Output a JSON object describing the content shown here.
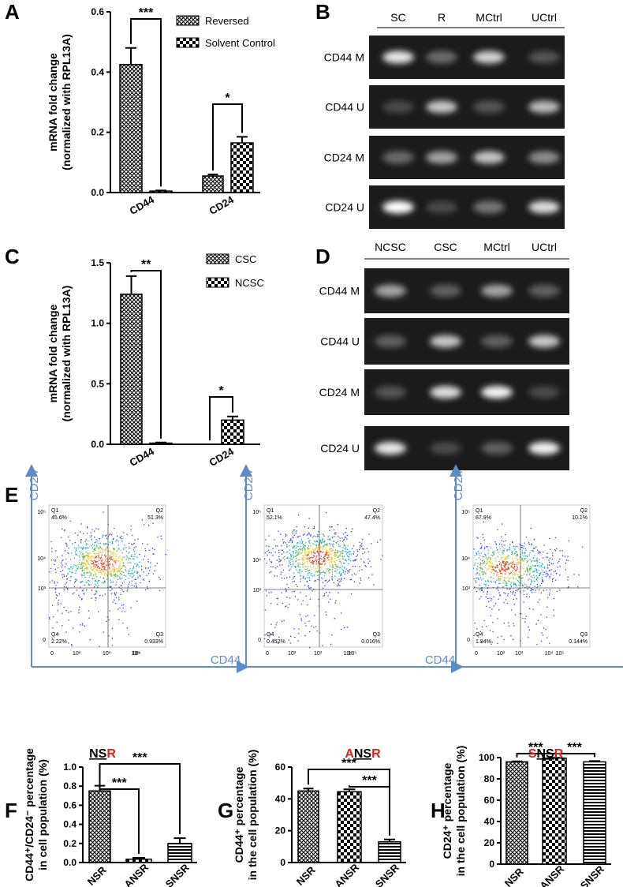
{
  "chart_data": [
    {
      "type": "bar",
      "label": "A",
      "ylabel": "mRNA fold change",
      "ylabel2": "(normalized with RPL13A)",
      "categories": [
        "CD44",
        "CD24"
      ],
      "series": [
        {
          "name": "Reversed",
          "color": "#000000",
          "values": [
            0.425,
            0.055
          ],
          "errors": [
            0.055,
            0.005
          ]
        },
        {
          "name": "Solvent Control",
          "color": "#000000",
          "values": [
            0.005,
            0.165
          ],
          "errors": [
            0.002,
            0.02
          ]
        }
      ],
      "ylim": [
        0,
        0.6
      ],
      "yticks": [
        {
          "value": 0,
          "label": "0.0"
        },
        0.2,
        0.4,
        0.6
      ],
      "annotations": [
        "***",
        "*"
      ]
    },
    {
      "type": "bar",
      "label": "C",
      "ylabel": "mRNA fold change",
      "ylabel2": "(normalized with RPL13A)",
      "categories": [
        "CD44",
        "CD24"
      ],
      "series": [
        {
          "name": "CSC",
          "color": "#000000",
          "values": [
            1.24,
            0
          ],
          "errors": [
            0.15,
            0
          ]
        },
        {
          "name": "NCSC",
          "color": "#000000",
          "values": [
            0.01,
            0.2
          ],
          "errors": [
            0.005,
            0.03
          ]
        }
      ],
      "ylim": [
        0,
        1.5
      ],
      "yticks": [
        {
          "value": 0,
          "label": "0.0"
        },
        0.5,
        {
          "value": 1,
          "label": "1.0"
        },
        1.5
      ],
      "annotations": [
        "**",
        "*"
      ]
    },
    {
      "type": "bar",
      "label": "F",
      "title_parts": [
        {
          "text": "NS",
          "color": "#000000"
        },
        {
          "text": "R",
          "color": "#e0201b"
        }
      ],
      "ylabel": "CD44⁺/CD24⁻ percentage",
      "ylabel2": "in cell population (%)",
      "categories": [
        "NSR",
        "ANSR",
        "SNSR"
      ],
      "values": [
        0.75,
        0.035,
        0.2
      ],
      "errors": [
        0.055,
        0.015,
        0.055
      ],
      "color": "#000000",
      "ylim": [
        0,
        1
      ],
      "yticks": [
        {
          "value": 0,
          "label": "0.0"
        },
        0.2,
        0.4,
        0.6,
        0.8,
        {
          "value": 1,
          "label": "1.0"
        }
      ],
      "annotations": [
        "***",
        "***"
      ]
    },
    {
      "type": "bar",
      "label": "G",
      "title_parts": [
        {
          "text": "A",
          "color": "#e0201b"
        },
        {
          "text": "NS",
          "color": "#000000"
        },
        {
          "text": "R",
          "color": "#e0201b"
        }
      ],
      "ylabel": "CD44⁺ percentage",
      "ylabel2": "in the cell population (%)",
      "categories": [
        "NSR",
        "ANSR",
        "SNSR"
      ],
      "values": [
        45,
        44.5,
        13
      ],
      "errors": [
        1.5,
        1.5,
        1.5
      ],
      "color": "#000000",
      "ylim": [
        0,
        60
      ],
      "yticks": [
        0,
        20,
        40,
        60
      ],
      "annotations": [
        "***",
        "***"
      ]
    },
    {
      "type": "bar",
      "label": "H",
      "title_parts": [
        {
          "text": "S",
          "color": "#e0201b"
        },
        {
          "text": "NS",
          "color": "#000000"
        },
        {
          "text": "R",
          "color": "#e0201b"
        }
      ],
      "ylabel": "CD24⁺ percentage",
      "ylabel2": "in the cell population (%)",
      "categories": [
        "NSR",
        "ANSR",
        "SNSR"
      ],
      "values": [
        96,
        99.5,
        96
      ],
      "errors": [
        0.5,
        0.3,
        0.8
      ],
      "color": "#000000",
      "ylim": [
        0,
        100
      ],
      "yticks": [
        0,
        20,
        40,
        60,
        80,
        100
      ],
      "annotations": [
        "***",
        "***"
      ]
    }
  ],
  "gels": [
    {
      "label": "B",
      "lanes": [
        "SC",
        "R",
        "MCtrl",
        "UCtrl"
      ],
      "rows": [
        "CD44 M",
        "CD44 U",
        "CD24 M",
        "CD24 U"
      ]
    },
    {
      "label": "D",
      "lanes": [
        "NCSC",
        "CSC",
        "MCtrl",
        "UCtrl"
      ],
      "rows": [
        "CD44 M",
        "CD44 U",
        "CD24 M",
        "CD24 U"
      ]
    }
  ],
  "flow": {
    "label": "E",
    "xlabel": "CD44",
    "ylabel": "CD24",
    "xtick_labels": [
      "0",
      "10²",
      "10³",
      "10⁴",
      "10⁵"
    ],
    "ytick_labels": [
      "0",
      "10³",
      "10⁴",
      "10⁵"
    ],
    "plots": [
      {
        "quadrants": [
          {
            "name": "Q1",
            "value": "45.6%"
          },
          {
            "name": "Q2",
            "value": "51.3%"
          },
          {
            "name": "Q3",
            "value": "0.933%"
          },
          {
            "name": "Q4",
            "value": "2.22%"
          }
        ]
      },
      {
        "quadrants": [
          {
            "name": "Q1",
            "value": "52.1%"
          },
          {
            "name": "Q2",
            "value": "47.4%"
          },
          {
            "name": "Q3",
            "value": "0.016%"
          },
          {
            "name": "Q4",
            "value": "0.452%"
          }
        ]
      },
      {
        "quadrants": [
          {
            "name": "Q1",
            "value": "87.9%"
          },
          {
            "name": "Q2",
            "value": "10.1%"
          },
          {
            "name": "Q3",
            "value": "0.144%"
          },
          {
            "name": "Q4",
            "value": "1.84%"
          }
        ]
      }
    ]
  }
}
